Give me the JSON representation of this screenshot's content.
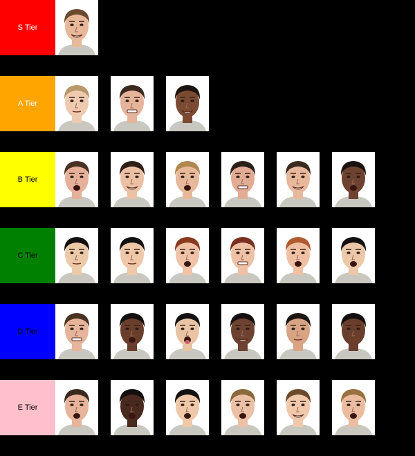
{
  "tiers": [
    {
      "label": "S Tier",
      "color": "#ff0000",
      "text_color": "#ffffff",
      "photos": [
        {
          "name": "smiling-man-photo",
          "skin": "#e8b89a",
          "hair": "#6b4a2e",
          "mouth": "smile"
        }
      ]
    },
    {
      "label": "A Tier",
      "color": "#ffa500",
      "text_color": "#ffffff",
      "photos": [
        {
          "name": "neutral-woman-photo",
          "skin": "#efc9b0",
          "hair": "#b89a6a",
          "mouth": "neutral"
        },
        {
          "name": "grimacing-man-photo",
          "skin": "#e6b49a",
          "hair": "#3a2a1e",
          "mouth": "grimace"
        },
        {
          "name": "grinning-man-photo",
          "skin": "#7a4a32",
          "hair": "#1a1410",
          "mouth": "smile"
        }
      ]
    },
    {
      "label": "B Tier",
      "color": "#ffff00",
      "text_color": "#000000",
      "photos": [
        {
          "name": "disgusted-man-photo",
          "skin": "#e6b09a",
          "hair": "#4a3222",
          "mouth": "open"
        },
        {
          "name": "happy-man-photo",
          "skin": "#ecc0a4",
          "hair": "#2e2018",
          "mouth": "smile"
        },
        {
          "name": "screaming-woman-photo",
          "skin": "#e8b89a",
          "hair": "#b0884e",
          "mouth": "open"
        },
        {
          "name": "angry-man-photo",
          "skin": "#e2ac94",
          "hair": "#2a201a",
          "mouth": "grimace"
        },
        {
          "name": "laughing-man-photo",
          "skin": "#e8b89c",
          "hair": "#3a2a1e",
          "mouth": "smile"
        },
        {
          "name": "surprised-woman-photo",
          "skin": "#6e4230",
          "hair": "#1a1210",
          "mouth": "open"
        }
      ]
    },
    {
      "label": "C Tier",
      "color": "#008000",
      "text_color": "#000000",
      "photos": [
        {
          "name": "neutral-woman-photo-2",
          "skin": "#eccaa8",
          "hair": "#141010",
          "mouth": "neutral"
        },
        {
          "name": "calm-woman-photo",
          "skin": "#eec8a8",
          "hair": "#141010",
          "mouth": "neutral"
        },
        {
          "name": "shocked-woman-photo",
          "skin": "#f0c2a8",
          "hair": "#8a3a1e",
          "mouth": "open"
        },
        {
          "name": "frowning-woman-photo",
          "skin": "#eec0a4",
          "hair": "#7a3020",
          "mouth": "grimace"
        },
        {
          "name": "yelling-woman-photo",
          "skin": "#f0c0a4",
          "hair": "#b05a30",
          "mouth": "open"
        },
        {
          "name": "sad-woman-photo",
          "skin": "#ecc8a8",
          "hair": "#141010",
          "mouth": "open"
        }
      ]
    },
    {
      "label": "D Tier",
      "color": "#0000ff",
      "text_color": "#000000",
      "photos": [
        {
          "name": "squinting-man-photo",
          "skin": "#e6b49a",
          "hair": "#4a3222",
          "mouth": "grimace"
        },
        {
          "name": "gasping-woman-photo",
          "skin": "#6a3e2c",
          "hair": "#141010",
          "mouth": "open"
        },
        {
          "name": "tongue-out-woman-photo",
          "skin": "#e8c4a4",
          "hair": "#141010",
          "mouth": "tongue"
        },
        {
          "name": "laughing-man-photo-2",
          "skin": "#6e4230",
          "hair": "#141010",
          "mouth": "smile"
        },
        {
          "name": "smiling-man-photo-2",
          "skin": "#d8a484",
          "hair": "#1e1612",
          "mouth": "neutral"
        },
        {
          "name": "pouting-woman-photo",
          "skin": "#6a3e2c",
          "hair": "#141010",
          "mouth": "neutral"
        }
      ]
    },
    {
      "label": "E Tier",
      "color": "#ffc0cb",
      "text_color": "#000000",
      "photos": [
        {
          "name": "startled-man-photo",
          "skin": "#e6b49a",
          "hair": "#3a2a1e",
          "mouth": "open"
        },
        {
          "name": "wide-eyed-man-photo",
          "skin": "#4a2a1e",
          "hair": "#141010",
          "mouth": "open"
        },
        {
          "name": "surprised-woman-photo-2",
          "skin": "#eec8a8",
          "hair": "#141010",
          "mouth": "open"
        },
        {
          "name": "excited-man-photo",
          "skin": "#ecc0a4",
          "hair": "#8a6a3a",
          "mouth": "open"
        },
        {
          "name": "smiling-woman-photo",
          "skin": "#f0c8ac",
          "hair": "#6a4a2a",
          "mouth": "smile"
        },
        {
          "name": "amazed-man-photo",
          "skin": "#ecbca0",
          "hair": "#9a7040",
          "mouth": "open"
        }
      ]
    }
  ]
}
